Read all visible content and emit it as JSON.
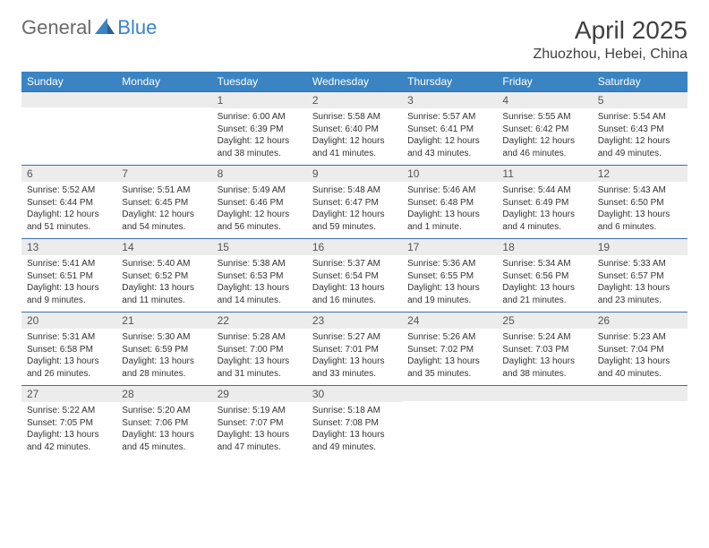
{
  "logo": {
    "general": "General",
    "blue": "Blue"
  },
  "title": "April 2025",
  "location": "Zhuozhou, Hebei, China",
  "colors": {
    "header_bg": "#3a84c4",
    "header_text": "#ffffff",
    "daynum_bg": "#ececec",
    "daynum_text": "#555555",
    "body_text": "#333333",
    "border": "#3a6fa5",
    "logo_gray": "#6a6a6a",
    "logo_blue": "#3a84c4"
  },
  "day_headers": [
    "Sunday",
    "Monday",
    "Tuesday",
    "Wednesday",
    "Thursday",
    "Friday",
    "Saturday"
  ],
  "weeks": [
    [
      null,
      null,
      {
        "n": "1",
        "sr": "Sunrise: 6:00 AM",
        "ss": "Sunset: 6:39 PM",
        "dl": "Daylight: 12 hours and 38 minutes."
      },
      {
        "n": "2",
        "sr": "Sunrise: 5:58 AM",
        "ss": "Sunset: 6:40 PM",
        "dl": "Daylight: 12 hours and 41 minutes."
      },
      {
        "n": "3",
        "sr": "Sunrise: 5:57 AM",
        "ss": "Sunset: 6:41 PM",
        "dl": "Daylight: 12 hours and 43 minutes."
      },
      {
        "n": "4",
        "sr": "Sunrise: 5:55 AM",
        "ss": "Sunset: 6:42 PM",
        "dl": "Daylight: 12 hours and 46 minutes."
      },
      {
        "n": "5",
        "sr": "Sunrise: 5:54 AM",
        "ss": "Sunset: 6:43 PM",
        "dl": "Daylight: 12 hours and 49 minutes."
      }
    ],
    [
      {
        "n": "6",
        "sr": "Sunrise: 5:52 AM",
        "ss": "Sunset: 6:44 PM",
        "dl": "Daylight: 12 hours and 51 minutes."
      },
      {
        "n": "7",
        "sr": "Sunrise: 5:51 AM",
        "ss": "Sunset: 6:45 PM",
        "dl": "Daylight: 12 hours and 54 minutes."
      },
      {
        "n": "8",
        "sr": "Sunrise: 5:49 AM",
        "ss": "Sunset: 6:46 PM",
        "dl": "Daylight: 12 hours and 56 minutes."
      },
      {
        "n": "9",
        "sr": "Sunrise: 5:48 AM",
        "ss": "Sunset: 6:47 PM",
        "dl": "Daylight: 12 hours and 59 minutes."
      },
      {
        "n": "10",
        "sr": "Sunrise: 5:46 AM",
        "ss": "Sunset: 6:48 PM",
        "dl": "Daylight: 13 hours and 1 minute."
      },
      {
        "n": "11",
        "sr": "Sunrise: 5:44 AM",
        "ss": "Sunset: 6:49 PM",
        "dl": "Daylight: 13 hours and 4 minutes."
      },
      {
        "n": "12",
        "sr": "Sunrise: 5:43 AM",
        "ss": "Sunset: 6:50 PM",
        "dl": "Daylight: 13 hours and 6 minutes."
      }
    ],
    [
      {
        "n": "13",
        "sr": "Sunrise: 5:41 AM",
        "ss": "Sunset: 6:51 PM",
        "dl": "Daylight: 13 hours and 9 minutes."
      },
      {
        "n": "14",
        "sr": "Sunrise: 5:40 AM",
        "ss": "Sunset: 6:52 PM",
        "dl": "Daylight: 13 hours and 11 minutes."
      },
      {
        "n": "15",
        "sr": "Sunrise: 5:38 AM",
        "ss": "Sunset: 6:53 PM",
        "dl": "Daylight: 13 hours and 14 minutes."
      },
      {
        "n": "16",
        "sr": "Sunrise: 5:37 AM",
        "ss": "Sunset: 6:54 PM",
        "dl": "Daylight: 13 hours and 16 minutes."
      },
      {
        "n": "17",
        "sr": "Sunrise: 5:36 AM",
        "ss": "Sunset: 6:55 PM",
        "dl": "Daylight: 13 hours and 19 minutes."
      },
      {
        "n": "18",
        "sr": "Sunrise: 5:34 AM",
        "ss": "Sunset: 6:56 PM",
        "dl": "Daylight: 13 hours and 21 minutes."
      },
      {
        "n": "19",
        "sr": "Sunrise: 5:33 AM",
        "ss": "Sunset: 6:57 PM",
        "dl": "Daylight: 13 hours and 23 minutes."
      }
    ],
    [
      {
        "n": "20",
        "sr": "Sunrise: 5:31 AM",
        "ss": "Sunset: 6:58 PM",
        "dl": "Daylight: 13 hours and 26 minutes."
      },
      {
        "n": "21",
        "sr": "Sunrise: 5:30 AM",
        "ss": "Sunset: 6:59 PM",
        "dl": "Daylight: 13 hours and 28 minutes."
      },
      {
        "n": "22",
        "sr": "Sunrise: 5:28 AM",
        "ss": "Sunset: 7:00 PM",
        "dl": "Daylight: 13 hours and 31 minutes."
      },
      {
        "n": "23",
        "sr": "Sunrise: 5:27 AM",
        "ss": "Sunset: 7:01 PM",
        "dl": "Daylight: 13 hours and 33 minutes."
      },
      {
        "n": "24",
        "sr": "Sunrise: 5:26 AM",
        "ss": "Sunset: 7:02 PM",
        "dl": "Daylight: 13 hours and 35 minutes."
      },
      {
        "n": "25",
        "sr": "Sunrise: 5:24 AM",
        "ss": "Sunset: 7:03 PM",
        "dl": "Daylight: 13 hours and 38 minutes."
      },
      {
        "n": "26",
        "sr": "Sunrise: 5:23 AM",
        "ss": "Sunset: 7:04 PM",
        "dl": "Daylight: 13 hours and 40 minutes."
      }
    ],
    [
      {
        "n": "27",
        "sr": "Sunrise: 5:22 AM",
        "ss": "Sunset: 7:05 PM",
        "dl": "Daylight: 13 hours and 42 minutes."
      },
      {
        "n": "28",
        "sr": "Sunrise: 5:20 AM",
        "ss": "Sunset: 7:06 PM",
        "dl": "Daylight: 13 hours and 45 minutes."
      },
      {
        "n": "29",
        "sr": "Sunrise: 5:19 AM",
        "ss": "Sunset: 7:07 PM",
        "dl": "Daylight: 13 hours and 47 minutes."
      },
      {
        "n": "30",
        "sr": "Sunrise: 5:18 AM",
        "ss": "Sunset: 7:08 PM",
        "dl": "Daylight: 13 hours and 49 minutes."
      },
      null,
      null,
      null
    ]
  ]
}
